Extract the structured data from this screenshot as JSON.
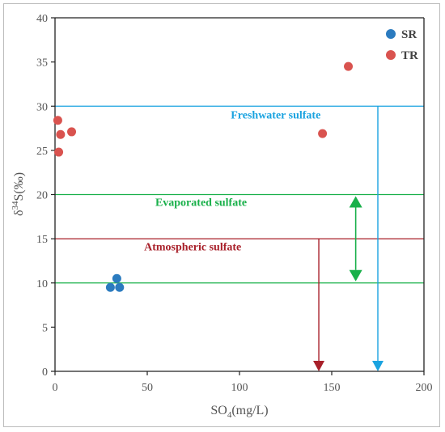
{
  "chart_data": {
    "type": "scatter",
    "xlabel_main": "SO",
    "xlabel_sub": "4",
    "xlabel_rest": "(mg/L)",
    "ylabel_main": "δ",
    "ylabel_sup": "34",
    "ylabel_rest": "S(‰)",
    "xlim": [
      0,
      200
    ],
    "ylim": [
      0,
      40
    ],
    "xticks": [
      0,
      50,
      100,
      150,
      200
    ],
    "yticks": [
      0,
      5,
      10,
      15,
      20,
      25,
      30,
      35,
      40
    ],
    "grid": false,
    "legend_position": "top-right",
    "series": [
      {
        "name": "SR",
        "color": "#2b7bbf",
        "points": [
          [
            30,
            9.5
          ],
          [
            33.5,
            10.5
          ],
          [
            35,
            9.5
          ]
        ]
      },
      {
        "name": "TR",
        "color": "#d9534f",
        "points": [
          [
            1.5,
            28.4
          ],
          [
            3,
            26.8
          ],
          [
            9,
            27.1
          ],
          [
            2,
            24.8
          ],
          [
            145,
            26.9
          ],
          [
            159,
            34.5
          ]
        ]
      }
    ],
    "reference_lines": [
      {
        "y": 30,
        "color": "#1aa3e0"
      },
      {
        "y": 20,
        "color": "#19b04a"
      },
      {
        "y": 15,
        "color": "#a8202a"
      },
      {
        "y": 10,
        "color": "#19b04a"
      }
    ],
    "annotations": [
      {
        "text": "Freshwater sulfate",
        "color": "#1aa3e0",
        "x": 144,
        "y": 28.6
      },
      {
        "text": "Evaporated sulfate",
        "color": "#19b04a",
        "x": 104,
        "y": 18.7
      },
      {
        "text": "Atmospheric sulfate",
        "color": "#a8202a",
        "x": 101,
        "y": 13.7
      }
    ],
    "arrows": [
      {
        "kind": "down",
        "color": "#1aa3e0",
        "x": 175,
        "y_from": 30,
        "y_to": 0
      },
      {
        "kind": "down",
        "color": "#a8202a",
        "x": 143,
        "y_from": 15,
        "y_to": 0
      },
      {
        "kind": "double",
        "color": "#19b04a",
        "x": 163,
        "y_from": 20,
        "y_to": 10
      }
    ]
  }
}
